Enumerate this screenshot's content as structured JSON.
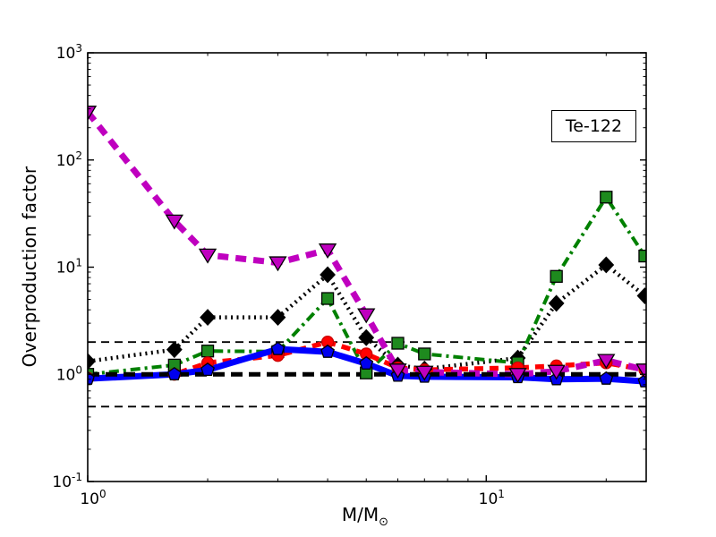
{
  "chart_data": {
    "type": "line",
    "annotation": "Te-122",
    "xlabel_main": "M/M",
    "xlabel_sub": "⊙",
    "ylabel": "Overproduction factor",
    "xscale": "log",
    "yscale": "log",
    "xlim": [
      1,
      25.2
    ],
    "ylim": [
      0.1,
      1000
    ],
    "grid": false,
    "legend_position": "none",
    "x_major_ticks": [
      {
        "value": 1,
        "exponent": "0"
      },
      {
        "value": 10,
        "exponent": "1"
      }
    ],
    "x_minor_ticks": [
      2,
      3,
      4,
      5,
      6,
      7,
      8,
      9,
      20
    ],
    "y_major_ticks": [
      {
        "value": 1000,
        "exponent": "3"
      },
      {
        "value": 100,
        "exponent": "2"
      },
      {
        "value": 10,
        "exponent": "1"
      },
      {
        "value": 1,
        "exponent": "0"
      },
      {
        "value": 0.1,
        "exponent": "-1"
      }
    ],
    "y_minor_ticks": [
      0.2,
      0.3,
      0.4,
      0.5,
      0.6,
      0.7,
      0.8,
      0.9,
      2,
      3,
      4,
      5,
      6,
      7,
      8,
      9,
      20,
      30,
      40,
      50,
      60,
      70,
      80,
      90,
      200,
      300,
      400,
      500,
      600,
      700,
      800,
      900
    ],
    "x": [
      1,
      1.65,
      2,
      3,
      4,
      5,
      6,
      7,
      12,
      15,
      20,
      25
    ],
    "series": [
      {
        "id": "black-dotted-diamond",
        "color": "#000000",
        "line": "dotted",
        "marker": "diamond",
        "marker_fill": "#000000",
        "marker_edge": "#000000",
        "values": [
          1.32,
          1.7,
          3.4,
          3.4,
          8.5,
          2.2,
          1.22,
          1.12,
          1.42,
          4.6,
          10.5,
          5.4
        ]
      },
      {
        "id": "green-dashdot-square",
        "color": "#008000",
        "line": "dashdot",
        "marker": "square",
        "marker_fill": "#1e8a1e",
        "marker_edge": "#000000",
        "values": [
          1.0,
          1.22,
          1.65,
          1.63,
          5.1,
          1.03,
          1.95,
          1.55,
          1.28,
          8.2,
          45,
          12.7
        ]
      },
      {
        "id": "red-dashed-circle",
        "color": "#ff0000",
        "line": "dashed",
        "marker": "circle",
        "marker_fill": "#ff0000",
        "marker_edge": "#cc0000",
        "values": [
          0.92,
          1.0,
          1.28,
          1.5,
          2.0,
          1.55,
          1.15,
          1.1,
          1.15,
          1.2,
          1.28,
          1.1
        ]
      },
      {
        "id": "blue-solid-pentagon",
        "color": "#0000ff",
        "line": "bold-solid",
        "marker": "pentagon",
        "marker_fill": "#0000ee",
        "marker_edge": "#000000",
        "values": [
          0.91,
          1.0,
          1.1,
          1.72,
          1.62,
          1.26,
          0.97,
          0.95,
          0.94,
          0.9,
          0.91,
          0.86
        ]
      },
      {
        "id": "magenta-dashed-triangle",
        "color": "#bf00bf",
        "line": "bold-dashed",
        "marker": "triangle-down",
        "marker_fill": "#bf00bf",
        "marker_edge": "#000000",
        "values": [
          280,
          27,
          13,
          11,
          14.5,
          3.6,
          1.1,
          1.05,
          1.0,
          1.07,
          1.35,
          1.1
        ]
      }
    ],
    "reference_lines": [
      {
        "y": 2,
        "color": "#000000",
        "style": "ref-thin"
      },
      {
        "y": 0.5,
        "color": "#000000",
        "style": "ref-thin"
      },
      {
        "y": 1,
        "color": "#000000",
        "style": "ref-thick"
      }
    ]
  }
}
